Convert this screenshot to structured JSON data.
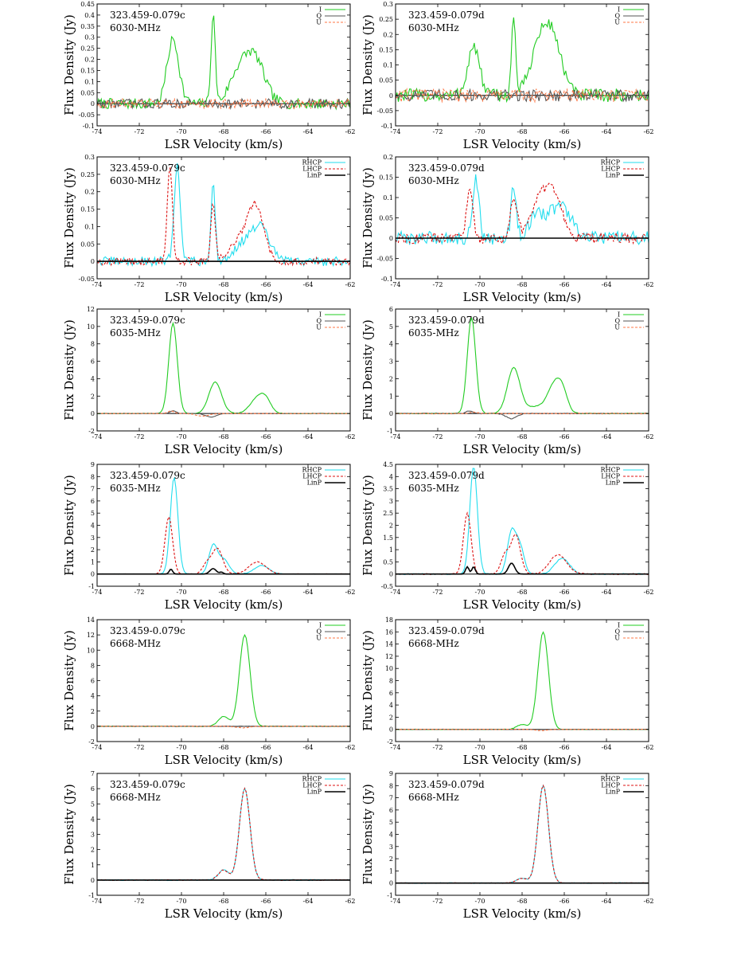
{
  "chart_data": [
    {
      "type": "line",
      "source": "323.459-0.079c",
      "transition": "6030-MHz",
      "xlabel": "LSR Velocity (km/s)",
      "ylabel": "Flux Density (Jy)",
      "xlim": [
        -74,
        -62
      ],
      "ylim": [
        -0.1,
        0.45
      ],
      "xticks": [
        "-74",
        "-72",
        "-70",
        "-68",
        "-66",
        "-64",
        "-62"
      ],
      "yticks": [
        "-0.1",
        "-0.05",
        "0",
        "0.05",
        "0.1",
        "0.15",
        "0.2",
        "0.25",
        "0.3",
        "0.35",
        "0.4",
        "0.45"
      ],
      "legend": [
        "I",
        "Q",
        "U"
      ],
      "colors": [
        "#22cc22",
        "#555555",
        "#ff7744"
      ],
      "dashes": [
        "",
        "",
        "3,2"
      ],
      "series": [
        {
          "noise": 0.022,
          "peaks": [
            [
              -70.4,
              0.29,
              0.28
            ],
            [
              -68.5,
              0.4,
              0.1
            ],
            [
              -66.6,
              0.22,
              0.5
            ],
            [
              -67.4,
              0.1,
              0.4
            ]
          ]
        },
        {
          "noise": 0.02,
          "peaks": []
        },
        {
          "noise": 0.02,
          "peaks": []
        }
      ]
    },
    {
      "type": "line",
      "source": "323.459-0.079d",
      "transition": "6030-MHz",
      "xlabel": "LSR Velocity (km/s)",
      "ylabel": "Flux Density (Jy)",
      "xlim": [
        -74,
        -62
      ],
      "ylim": [
        -0.1,
        0.3
      ],
      "xticks": [
        "-74",
        "-72",
        "-70",
        "-68",
        "-66",
        "-64",
        "-62"
      ],
      "yticks": [
        "-0.1",
        "-0.05",
        "0",
        "0.05",
        "0.1",
        "0.15",
        "0.2",
        "0.25",
        "0.3"
      ],
      "legend": [
        "I",
        "Q",
        "U"
      ],
      "colors": [
        "#22cc22",
        "#555555",
        "#ff7744"
      ],
      "dashes": [
        "",
        "",
        "3,2"
      ],
      "series": [
        {
          "noise": 0.02,
          "peaks": [
            [
              -70.3,
              0.16,
              0.28
            ],
            [
              -68.4,
              0.25,
              0.1
            ],
            [
              -66.6,
              0.2,
              0.45
            ],
            [
              -67.3,
              0.12,
              0.4
            ]
          ]
        },
        {
          "noise": 0.018,
          "peaks": []
        },
        {
          "noise": 0.02,
          "peaks": []
        }
      ]
    },
    {
      "type": "line",
      "source": "323.459-0.079c",
      "transition": "6030-MHz",
      "xlabel": "LSR Velocity (km/s)",
      "ylabel": "Flux Density (Jy)",
      "xlim": [
        -74,
        -62
      ],
      "ylim": [
        -0.05,
        0.3
      ],
      "xticks": [
        "-74",
        "-72",
        "-70",
        "-68",
        "-66",
        "-64",
        "-62"
      ],
      "yticks": [
        "-0.05",
        "0",
        "0.05",
        "0.1",
        "0.15",
        "0.2",
        "0.25",
        "0.3"
      ],
      "legend": [
        "RHCP",
        "LHCP",
        "LinP"
      ],
      "colors": [
        "#22ddee",
        "#dd1111",
        "#000000"
      ],
      "dashes": [
        "",
        "3,2",
        ""
      ],
      "series": [
        {
          "noise": 0.012,
          "peaks": [
            [
              -70.2,
              0.27,
              0.15
            ],
            [
              -68.5,
              0.22,
              0.1
            ],
            [
              -66.3,
              0.1,
              0.45
            ],
            [
              -67.2,
              0.04,
              0.4
            ]
          ]
        },
        {
          "noise": 0.01,
          "peaks": [
            [
              -70.55,
              0.27,
              0.12
            ],
            [
              -68.5,
              0.17,
              0.1
            ],
            [
              -66.5,
              0.16,
              0.4
            ],
            [
              -67.4,
              0.05,
              0.4
            ]
          ]
        },
        {
          "noise": 0,
          "peaks": []
        }
      ]
    },
    {
      "type": "line",
      "source": "323.459-0.079d",
      "transition": "6030-MHz",
      "xlabel": "LSR Velocity (km/s)",
      "ylabel": "Flux Density (Jy)",
      "xlim": [
        -74,
        -62
      ],
      "ylim": [
        -0.1,
        0.2
      ],
      "xticks": [
        "-74",
        "-72",
        "-70",
        "-68",
        "-66",
        "-64",
        "-62"
      ],
      "yticks": [
        "-0.1",
        "-0.05",
        "0",
        "0.05",
        "0.1",
        "0.15",
        "0.2"
      ],
      "legend": [
        "RHCP",
        "LHCP",
        "LinP"
      ],
      "colors": [
        "#22ddee",
        "#dd1111",
        "#000000"
      ],
      "dashes": [
        "",
        "3,2",
        ""
      ],
      "series": [
        {
          "noise": 0.015,
          "peaks": [
            [
              -70.2,
              0.15,
              0.15
            ],
            [
              -68.4,
              0.13,
              0.12
            ],
            [
              -66.2,
              0.08,
              0.5
            ],
            [
              -67.3,
              0.05,
              0.4
            ]
          ]
        },
        {
          "noise": 0.012,
          "peaks": [
            [
              -70.5,
              0.12,
              0.15
            ],
            [
              -68.4,
              0.1,
              0.15
            ],
            [
              -66.6,
              0.12,
              0.45
            ],
            [
              -67.4,
              0.06,
              0.4
            ]
          ]
        },
        {
          "noise": 0,
          "peaks": []
        }
      ]
    },
    {
      "type": "line",
      "source": "323.459-0.079c",
      "transition": "6035-MHz",
      "xlabel": "LSR Velocity (km/s)",
      "ylabel": "Flux Density (Jy)",
      "xlim": [
        -74,
        -62
      ],
      "ylim": [
        -2,
        12
      ],
      "xticks": [
        "-74",
        "-72",
        "-70",
        "-68",
        "-66",
        "-64",
        "-62"
      ],
      "yticks": [
        "-2",
        "0",
        "2",
        "4",
        "6",
        "8",
        "10",
        "12"
      ],
      "legend": [
        "I",
        "Q",
        "U"
      ],
      "colors": [
        "#22cc22",
        "#555555",
        "#ff7744"
      ],
      "dashes": [
        "",
        "",
        "3,2"
      ],
      "series": [
        {
          "noise": 0.03,
          "peaks": [
            [
              -70.4,
              10.4,
              0.2
            ],
            [
              -68.4,
              3.6,
              0.3
            ],
            [
              -66.4,
              1.7,
              0.35
            ],
            [
              -66.0,
              1.2,
              0.25
            ]
          ]
        },
        {
          "noise": 0.02,
          "peaks": [
            [
              -70.4,
              0.3,
              0.15
            ],
            [
              -68.6,
              -0.4,
              0.25
            ]
          ]
        },
        {
          "noise": 0.02,
          "peaks": [
            [
              -70.5,
              0.3,
              0.15
            ],
            [
              -69.0,
              -0.3,
              0.3
            ]
          ]
        }
      ]
    },
    {
      "type": "line",
      "source": "323.459-0.079d",
      "transition": "6035-MHz",
      "xlabel": "LSR Velocity (km/s)",
      "ylabel": "Flux Density (Jy)",
      "xlim": [
        -74,
        -62
      ],
      "ylim": [
        -1,
        6
      ],
      "xticks": [
        "-74",
        "-72",
        "-70",
        "-68",
        "-66",
        "-64",
        "-62"
      ],
      "yticks": [
        "-1",
        "0",
        "1",
        "2",
        "3",
        "4",
        "5",
        "6"
      ],
      "legend": [
        "I",
        "Q",
        "U"
      ],
      "colors": [
        "#22cc22",
        "#555555",
        "#ff7744"
      ],
      "dashes": [
        "",
        "",
        "3,2"
      ],
      "series": [
        {
          "noise": 0.02,
          "peaks": [
            [
              -70.4,
              5.5,
              0.2
            ],
            [
              -68.4,
              2.6,
              0.3
            ],
            [
              -66.5,
              1.4,
              0.3
            ],
            [
              -66.1,
              1.2,
              0.25
            ],
            [
              -67.3,
              0.4,
              0.5
            ]
          ]
        },
        {
          "noise": 0.02,
          "peaks": [
            [
              -70.5,
              0.15,
              0.15
            ],
            [
              -68.5,
              -0.3,
              0.25
            ]
          ]
        },
        {
          "noise": 0.02,
          "peaks": [
            [
              -70.3,
              0.1,
              0.15
            ]
          ]
        }
      ]
    },
    {
      "type": "line",
      "source": "323.459-0.079c",
      "transition": "6035-MHz",
      "xlabel": "LSR Velocity (km/s)",
      "ylabel": "Flux Density (Jy)",
      "xlim": [
        -74,
        -62
      ],
      "ylim": [
        -1,
        9
      ],
      "xticks": [
        "-74",
        "-72",
        "-70",
        "-68",
        "-66",
        "-64",
        "-62"
      ],
      "yticks": [
        "-1",
        "0",
        "1",
        "2",
        "3",
        "4",
        "5",
        "6",
        "7",
        "8",
        "9"
      ],
      "legend": [
        "RHCP",
        "LHCP",
        "LinP"
      ],
      "colors": [
        "#22ddee",
        "#dd1111",
        "#000000"
      ],
      "dashes": [
        "",
        "3,2",
        ""
      ],
      "series": [
        {
          "noise": 0.02,
          "peaks": [
            [
              -70.35,
              7.9,
              0.18
            ],
            [
              -68.5,
              2.3,
              0.2
            ],
            [
              -68.0,
              1.2,
              0.25
            ],
            [
              -66.2,
              0.7,
              0.35
            ]
          ]
        },
        {
          "noise": 0.02,
          "peaks": [
            [
              -70.6,
              4.7,
              0.18
            ],
            [
              -68.3,
              2.1,
              0.25
            ],
            [
              -68.8,
              0.8,
              0.2
            ],
            [
              -66.4,
              1.0,
              0.4
            ]
          ]
        },
        {
          "noise": 0,
          "peaks": [
            [
              -70.5,
              0.4,
              0.08
            ],
            [
              -68.5,
              0.45,
              0.15
            ],
            [
              -68.1,
              0.15,
              0.08
            ]
          ]
        }
      ]
    },
    {
      "type": "line",
      "source": "323.459-0.079d",
      "transition": "6035-MHz",
      "xlabel": "LSR Velocity (km/s)",
      "ylabel": "Flux Density (Jy)",
      "xlim": [
        -74,
        -62
      ],
      "ylim": [
        -0.5,
        4.5
      ],
      "xticks": [
        "-74",
        "-72",
        "-70",
        "-68",
        "-66",
        "-64",
        "-62"
      ],
      "yticks": [
        "-0.5",
        "0",
        "0.5",
        "1",
        "1.5",
        "2",
        "2.5",
        "3",
        "3.5",
        "4",
        "4.5"
      ],
      "legend": [
        "RHCP",
        "LHCP",
        "LinP"
      ],
      "colors": [
        "#22ddee",
        "#dd1111",
        "#000000"
      ],
      "dashes": [
        "",
        "3,2",
        ""
      ],
      "series": [
        {
          "noise": 0.02,
          "peaks": [
            [
              -70.3,
              4.4,
              0.18
            ],
            [
              -68.5,
              1.7,
              0.2
            ],
            [
              -68.1,
              1.1,
              0.2
            ],
            [
              -66.1,
              0.65,
              0.35
            ]
          ]
        },
        {
          "noise": 0.02,
          "peaks": [
            [
              -70.6,
              2.5,
              0.18
            ],
            [
              -68.3,
              1.6,
              0.22
            ],
            [
              -68.8,
              0.8,
              0.2
            ],
            [
              -66.3,
              0.8,
              0.4
            ]
          ]
        },
        {
          "noise": 0,
          "peaks": [
            [
              -70.6,
              0.3,
              0.08
            ],
            [
              -70.3,
              0.3,
              0.08
            ],
            [
              -68.5,
              0.45,
              0.15
            ]
          ]
        }
      ]
    },
    {
      "type": "line",
      "source": "323.459-0.079c",
      "transition": "6668-MHz",
      "xlabel": "LSR Velocity (km/s)",
      "ylabel": "Flux Density (Jy)",
      "xlim": [
        -74,
        -62
      ],
      "ylim": [
        -2,
        14
      ],
      "xticks": [
        "-74",
        "-72",
        "-70",
        "-68",
        "-66",
        "-64",
        "-62"
      ],
      "yticks": [
        "-2",
        "0",
        "2",
        "4",
        "6",
        "8",
        "10",
        "12",
        "14"
      ],
      "legend": [
        "I",
        "Q",
        "U"
      ],
      "colors": [
        "#22cc22",
        "#555555",
        "#ff7744"
      ],
      "dashes": [
        "",
        "",
        "3,2"
      ],
      "series": [
        {
          "noise": 0.04,
          "peaks": [
            [
              -67.0,
              12.0,
              0.25
            ],
            [
              -68.0,
              1.3,
              0.25
            ]
          ]
        },
        {
          "noise": 0.03,
          "peaks": []
        },
        {
          "noise": 0.03,
          "peaks": [
            [
              -67.1,
              -0.2,
              0.3
            ]
          ]
        }
      ]
    },
    {
      "type": "line",
      "source": "323.459-0.079d",
      "transition": "6668-MHz",
      "xlabel": "LSR Velocity (km/s)",
      "ylabel": "Flux Density (Jy)",
      "xlim": [
        -74,
        -62
      ],
      "ylim": [
        -2,
        18
      ],
      "xticks": [
        "-74",
        "-72",
        "-70",
        "-68",
        "-66",
        "-64",
        "-62"
      ],
      "yticks": [
        "-2",
        "0",
        "2",
        "4",
        "6",
        "8",
        "10",
        "12",
        "14",
        "16",
        "18"
      ],
      "legend": [
        "I",
        "Q",
        "U"
      ],
      "colors": [
        "#22cc22",
        "#555555",
        "#ff7744"
      ],
      "dashes": [
        "",
        "",
        "3,2"
      ],
      "series": [
        {
          "noise": 0.04,
          "peaks": [
            [
              -67.0,
              16.0,
              0.25
            ],
            [
              -68.0,
              0.8,
              0.25
            ]
          ]
        },
        {
          "noise": 0.03,
          "peaks": []
        },
        {
          "noise": 0.03,
          "peaks": [
            [
              -67.1,
              -0.2,
              0.3
            ]
          ]
        }
      ]
    },
    {
      "type": "line",
      "source": "323.459-0.079c",
      "transition": "6668-MHz",
      "xlabel": "LSR Velocity (km/s)",
      "ylabel": "Flux Density (Jy)",
      "xlim": [
        -74,
        -62
      ],
      "ylim": [
        -1,
        7
      ],
      "xticks": [
        "-74",
        "-72",
        "-70",
        "-68",
        "-66",
        "-64",
        "-62"
      ],
      "yticks": [
        "-1",
        "0",
        "1",
        "2",
        "3",
        "4",
        "5",
        "6",
        "7"
      ],
      "legend": [
        "RHCP",
        "LHCP",
        "LinP"
      ],
      "colors": [
        "#22ddee",
        "#dd1111",
        "#000000"
      ],
      "dashes": [
        "",
        "3,2",
        ""
      ],
      "series": [
        {
          "noise": 0.03,
          "peaks": [
            [
              -67.0,
              6.0,
              0.25
            ],
            [
              -68.0,
              0.65,
              0.25
            ]
          ]
        },
        {
          "noise": 0.025,
          "peaks": [
            [
              -67.0,
              6.0,
              0.25
            ],
            [
              -68.0,
              0.65,
              0.25
            ]
          ]
        },
        {
          "noise": 0,
          "peaks": []
        }
      ]
    },
    {
      "type": "line",
      "source": "323.459-0.079d",
      "transition": "6668-MHz",
      "xlabel": "LSR Velocity (km/s)",
      "ylabel": "Flux Density (Jy)",
      "xlim": [
        -74,
        -62
      ],
      "ylim": [
        -1,
        9
      ],
      "xticks": [
        "-74",
        "-72",
        "-70",
        "-68",
        "-66",
        "-64",
        "-62"
      ],
      "yticks": [
        "-1",
        "0",
        "1",
        "2",
        "3",
        "4",
        "5",
        "6",
        "7",
        "8",
        "9"
      ],
      "legend": [
        "RHCP",
        "LHCP",
        "LinP"
      ],
      "colors": [
        "#22ddee",
        "#dd1111",
        "#000000"
      ],
      "dashes": [
        "",
        "3,2",
        ""
      ],
      "series": [
        {
          "noise": 0.03,
          "peaks": [
            [
              -67.0,
              8.0,
              0.25
            ],
            [
              -68.0,
              0.4,
              0.25
            ]
          ]
        },
        {
          "noise": 0.025,
          "peaks": [
            [
              -67.0,
              8.0,
              0.25
            ],
            [
              -68.0,
              0.4,
              0.25
            ]
          ]
        },
        {
          "noise": 0,
          "peaks": []
        }
      ]
    }
  ]
}
